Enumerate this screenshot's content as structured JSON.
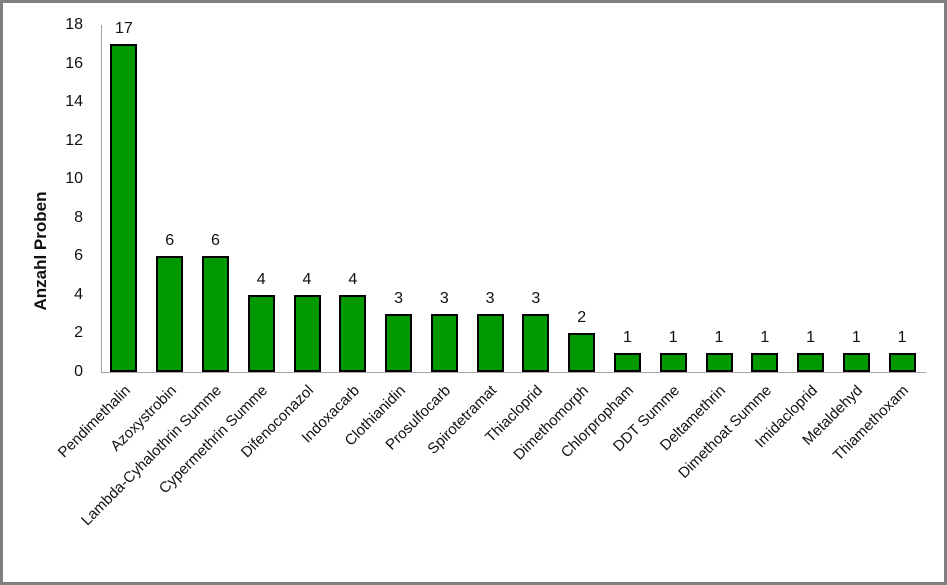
{
  "chart_data": {
    "type": "bar",
    "title": "",
    "xlabel": "",
    "ylabel": "Anzahl Proben",
    "categories": [
      "Pendimethalin",
      "Azoxystrobin",
      "Lambda-Cyhalothrin Summe",
      "Cypermethrin Summe",
      "Difenoconazol",
      "Indoxacarb",
      "Clothianidin",
      "Prosulfocarb",
      "Spirotetramat",
      "Thiacloprid",
      "Dimethomorph",
      "Chlorpropham",
      "DDT Summe",
      "Deltamethrin",
      "Dimethoat Summe",
      "Imidacloprid",
      "Metaldehyd",
      "Thiamethoxam"
    ],
    "values": [
      17,
      6,
      6,
      4,
      4,
      4,
      3,
      3,
      3,
      3,
      2,
      1,
      1,
      1,
      1,
      1,
      1,
      1
    ],
    "yticks": [
      0,
      2,
      4,
      6,
      8,
      10,
      12,
      14,
      16,
      18
    ],
    "ylim": [
      0,
      18
    ],
    "grid": false,
    "legend": false,
    "data_labels_shown": true,
    "x_label_rotation_deg": 45,
    "bar_fill_color": "#009A00",
    "bar_border_color": "#000000",
    "axis_line_color": "#A6A6A6",
    "text_color": "#111111",
    "frame_border_color": "#808080",
    "background_color": "#FFFFFF"
  }
}
